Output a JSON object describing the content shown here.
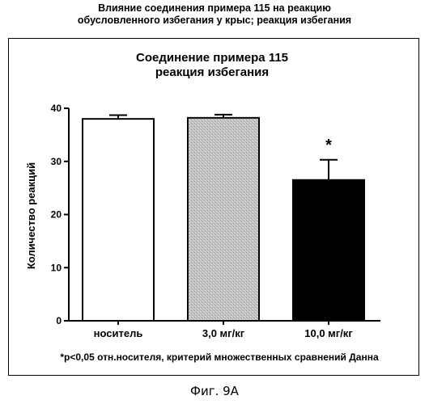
{
  "header": {
    "title_line1": "Влияние соединения примера 115 на реакцию",
    "title_line2": "обусловленного избегания у крыс; реакция избегания"
  },
  "chart_data": {
    "type": "bar",
    "title_line1": "Соединение примера 115",
    "title_line2": "реакция избегания",
    "ylabel": "Количество реакций",
    "xlabel": "",
    "ylim": [
      0,
      40
    ],
    "yticks": [
      0,
      10,
      20,
      30,
      40
    ],
    "grid": false,
    "categories": [
      "носитель",
      "3,0 мг/кг",
      "10,0 мг/кг"
    ],
    "values": [
      38.0,
      38.2,
      26.5
    ],
    "errors": [
      0.7,
      0.6,
      3.8
    ],
    "significance": [
      "",
      "",
      "*"
    ],
    "fills": [
      "#ffffff",
      "#c8c8c8",
      "#000000"
    ],
    "footnote": "*p<0,05 отн.носителя, критерий множественных сравнений Данна"
  },
  "figure_caption": "Фиг. 9А"
}
